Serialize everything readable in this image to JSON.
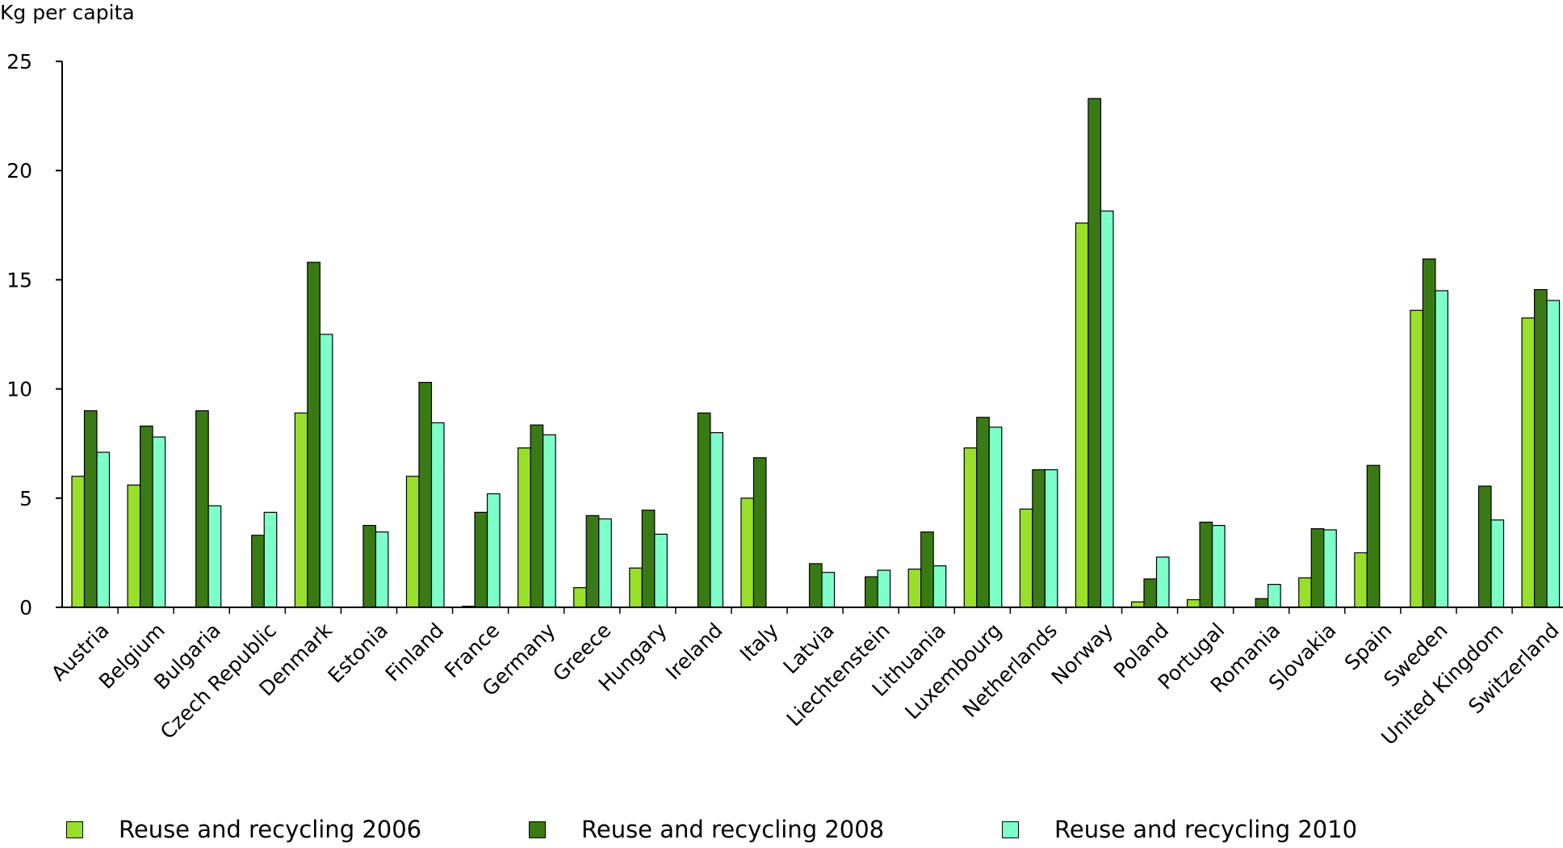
{
  "chart_data": {
    "type": "bar",
    "ylabel": "Kg per capita",
    "ylim": [
      0,
      25
    ],
    "yticks": [
      0,
      5,
      10,
      15,
      20,
      25
    ],
    "categories": [
      "Austria",
      "Belgium",
      "Bulgaria",
      "Czech Republic",
      "Denmark",
      "Estonia",
      "Finland",
      "France",
      "Germany",
      "Greece",
      "Hungary",
      "Ireland",
      "Italy",
      "Latvia",
      "Liechtenstein",
      "Lithuania",
      "Luxembourg",
      "Netherlands",
      "Norway",
      "Poland",
      "Portugal",
      "Romania",
      "Slovakia",
      "Spain",
      "Sweden",
      "United Kingdom",
      "Switzerland"
    ],
    "series": [
      {
        "name": "Reuse and recycling 2006",
        "color": "#99e02a",
        "values": [
          6.0,
          5.6,
          null,
          null,
          8.9,
          null,
          6.0,
          0.05,
          7.3,
          0.9,
          1.8,
          null,
          5.0,
          null,
          null,
          1.75,
          7.3,
          4.5,
          17.6,
          0.25,
          0.35,
          null,
          1.35,
          2.5,
          13.6,
          null,
          13.25
        ]
      },
      {
        "name": "Reuse and recycling 2008",
        "color": "#3a7a14",
        "values": [
          9.0,
          8.3,
          9.0,
          3.3,
          15.8,
          3.75,
          10.3,
          4.35,
          8.35,
          4.2,
          4.45,
          8.9,
          6.85,
          2.0,
          1.4,
          3.45,
          8.7,
          6.3,
          23.3,
          1.3,
          3.9,
          0.4,
          3.6,
          6.5,
          15.95,
          5.55,
          14.55
        ]
      },
      {
        "name": "Reuse and recycling 2010",
        "color": "#7dffca",
        "values": [
          7.1,
          7.8,
          4.65,
          4.35,
          12.5,
          3.45,
          8.45,
          5.2,
          7.9,
          4.05,
          3.35,
          8.0,
          null,
          1.6,
          1.7,
          1.9,
          8.25,
          6.3,
          18.15,
          2.3,
          3.75,
          1.05,
          3.55,
          null,
          14.5,
          4.0,
          14.05
        ]
      }
    ],
    "grid": false,
    "legend": "bottom"
  }
}
